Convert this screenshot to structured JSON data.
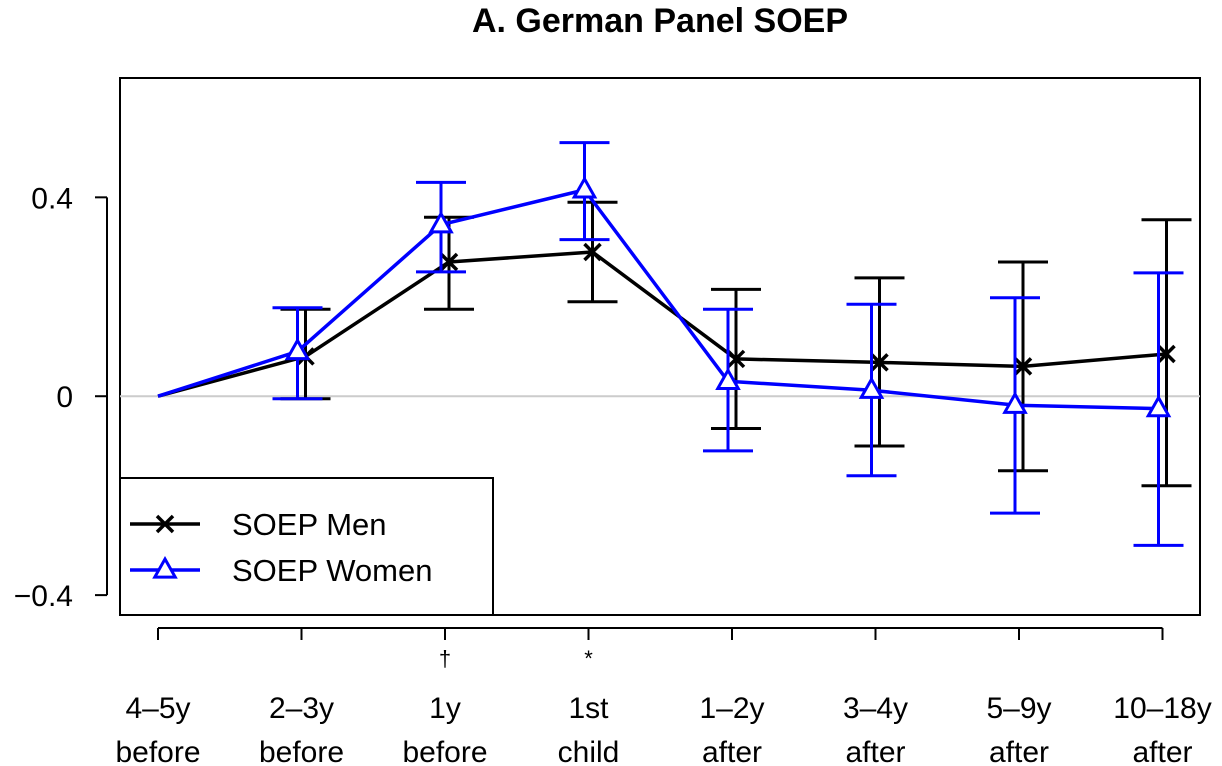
{
  "chart_data": {
    "type": "line",
    "title": "A. German Panel SOEP",
    "xlabel": "",
    "ylabel": "",
    "categories": [
      [
        "4–5y",
        "before"
      ],
      [
        "2–3y",
        "before"
      ],
      [
        "1y",
        "before"
      ],
      [
        "1st",
        "child"
      ],
      [
        "1–2y",
        "after"
      ],
      [
        "3–4y",
        "after"
      ],
      [
        "5–9y",
        "after"
      ],
      [
        "10–18y",
        "after"
      ]
    ],
    "significance_marks": [
      "",
      "",
      "†",
      "*",
      "",
      "",
      "",
      ""
    ],
    "ylim": [
      -0.44,
      0.64
    ],
    "yticks": [
      -0.4,
      0,
      0.4
    ],
    "ytick_labels": [
      "−0.4",
      "0",
      "0.4"
    ],
    "reference_line": 0,
    "grid": false,
    "legend_position": "bottom-left",
    "series": [
      {
        "name": "SOEP Men",
        "color": "#000000",
        "marker": "x",
        "values": [
          0,
          0.08,
          0.27,
          0.29,
          0.075,
          0.068,
          0.06,
          0.085
        ],
        "lower": [
          0,
          -0.005,
          0.175,
          0.19,
          -0.065,
          -0.1,
          -0.15,
          -0.18
        ],
        "upper": [
          0,
          0.175,
          0.36,
          0.39,
          0.215,
          0.238,
          0.27,
          0.355
        ]
      },
      {
        "name": "SOEP Women",
        "color": "#0000ff",
        "marker": "triangle",
        "values": [
          0,
          0.09,
          0.345,
          0.415,
          0.03,
          0.012,
          -0.018,
          -0.025
        ],
        "lower": [
          0,
          -0.005,
          0.25,
          0.315,
          -0.11,
          -0.16,
          -0.235,
          -0.3
        ],
        "upper": [
          0,
          0.178,
          0.43,
          0.51,
          0.175,
          0.185,
          0.198,
          0.248
        ]
      }
    ]
  }
}
